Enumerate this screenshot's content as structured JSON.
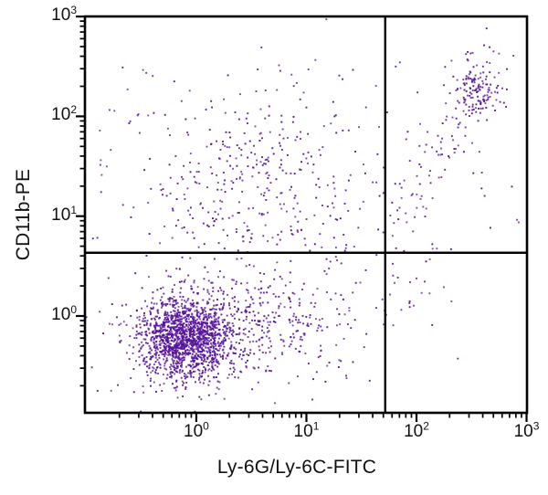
{
  "chart_data": {
    "type": "scatter",
    "title": "",
    "xlabel": "Ly-6G/Ly-6C-FITC",
    "ylabel": "CD11b-PE",
    "x_scale": "log",
    "y_scale": "log",
    "grid": false,
    "legend": "none",
    "tick_base": "10",
    "x_tick_exponents": [
      0,
      1,
      2,
      3
    ],
    "y_tick_exponents": [
      0,
      1,
      2,
      3
    ],
    "xlim_log10": [
      -1.012,
      3.004
    ],
    "ylim_log10": [
      -0.97,
      3.001
    ],
    "dot_color": "#55129B",
    "axis_color": "#000000",
    "background_color": "#ffffff",
    "quadrant_gates": {
      "x_value": 52,
      "y_value": 4.3
    },
    "populations": [
      {
        "name": "dense-double-negative-cluster",
        "kind": "gaussian",
        "count": 1500,
        "center_log10": [
          -0.1,
          -0.22
        ],
        "sigma_log10": [
          0.21,
          0.2
        ]
      },
      {
        "name": "cluster-right-tail",
        "kind": "gaussian",
        "count": 430,
        "center_log10": [
          0.42,
          -0.12
        ],
        "sigma_log10": [
          0.48,
          0.27
        ]
      },
      {
        "name": "diffuse-cd11b-positive-cloud",
        "kind": "gaussian",
        "count": 400,
        "center_log10": [
          0.55,
          1.2
        ],
        "sigma_log10": [
          0.55,
          0.58
        ]
      },
      {
        "name": "double-positive-bright-cluster",
        "kind": "gaussian",
        "count": 130,
        "center_log10": [
          2.57,
          2.25
        ],
        "sigma_log10": [
          0.1,
          0.13
        ]
      },
      {
        "name": "bright-cluster-upper-tail",
        "kind": "gaussian",
        "count": 12,
        "center_log10": [
          2.6,
          2.62
        ],
        "sigma_log10": [
          0.13,
          0.12
        ]
      },
      {
        "name": "diagonal-bridge-population",
        "kind": "band",
        "count": 85,
        "start_log10": [
          1.75,
          0.8
        ],
        "end_log10": [
          2.48,
          2.1
        ],
        "jitter_log10": [
          0.12,
          0.2
        ]
      },
      {
        "name": "below-gate-right-scatter",
        "kind": "gaussian",
        "count": 25,
        "center_log10": [
          1.95,
          0.25
        ],
        "sigma_log10": [
          0.18,
          0.3
        ]
      },
      {
        "name": "sparse-background",
        "kind": "uniform",
        "count": 95,
        "range_x_log10": [
          -0.95,
          1.7
        ],
        "range_y_log10": [
          -0.9,
          2.55
        ]
      },
      {
        "name": "sparse-background-upper-right",
        "kind": "uniform",
        "count": 18,
        "range_x_log10": [
          1.72,
          2.95
        ],
        "range_y_log10": [
          0.7,
          2.95
        ]
      }
    ]
  }
}
